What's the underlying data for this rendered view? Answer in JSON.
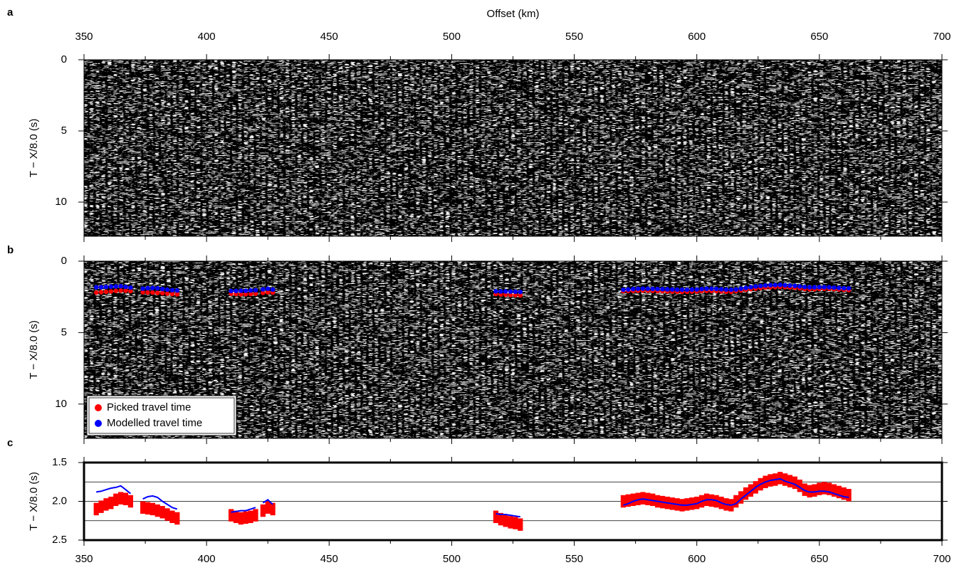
{
  "chart_data": [
    {
      "type": "seismic",
      "label": "a",
      "xlabel": "Offset (km)",
      "ylabel": "T − X/8.0 (s)",
      "yinvert": true,
      "xlim": [
        350,
        700
      ],
      "xticks": [
        350,
        400,
        450,
        500,
        550,
        600,
        650,
        700
      ],
      "xminorticks": [
        375,
        425,
        475,
        525,
        575,
        625,
        675
      ],
      "ylim": [
        0,
        12.4
      ],
      "yticks": [
        0,
        5,
        10
      ]
    },
    {
      "type": "seismic",
      "label": "b",
      "ylabel": "T − X/8.0 (s)",
      "yinvert": true,
      "legend": "lower left",
      "xlim": [
        350,
        700
      ],
      "xticks": [
        350,
        400,
        450,
        500,
        550,
        600,
        650,
        700
      ],
      "xminorticks": [
        375,
        425,
        475,
        525,
        575,
        625,
        675
      ],
      "ylim": [
        0,
        12.4
      ],
      "yticks": [
        0,
        5,
        10
      ]
    },
    {
      "type": "errorbar",
      "label": "c",
      "ylabel": "T − X/8.0 (s)",
      "yinvert": true,
      "xlim": [
        350,
        700
      ],
      "xticks": [
        350,
        400,
        450,
        500,
        550,
        600,
        650,
        700
      ],
      "xminorticks": [
        375,
        425,
        475,
        525,
        575,
        625,
        675
      ],
      "ylim": [
        1.5,
        2.5
      ],
      "yticks": [
        1.5,
        {
          "value": 2.0,
          "label": "2.0"
        },
        2.5
      ],
      "ygrid": [
        1.75,
        2.0,
        2.25
      ],
      "series": [
        {
          "name": "Picked travel time",
          "color": "#ff0000",
          "error": 0.08,
          "x": [
            355,
            357,
            359,
            361,
            363,
            365,
            367,
            369,
            null,
            374,
            376,
            378,
            380,
            382,
            384,
            386,
            388,
            null,
            410,
            412,
            414,
            416,
            418,
            420,
            null,
            423,
            425,
            427,
            null,
            518,
            520,
            522,
            524,
            526,
            528,
            null,
            570,
            572,
            574,
            576,
            578,
            580,
            582,
            584,
            586,
            588,
            590,
            592,
            594,
            596,
            598,
            600,
            602,
            604,
            606,
            608,
            610,
            612,
            614,
            616,
            618,
            620,
            622,
            624,
            626,
            628,
            630,
            632,
            634,
            636,
            638,
            640,
            642,
            644,
            646,
            648,
            650,
            652,
            654,
            656,
            658,
            660,
            662
          ],
          "values": [
            2.1,
            2.07,
            2.04,
            2.02,
            1.98,
            1.96,
            1.97,
            2.0,
            null,
            2.08,
            2.09,
            2.1,
            2.12,
            2.14,
            2.17,
            2.2,
            2.22,
            null,
            2.18,
            2.2,
            2.22,
            2.21,
            2.2,
            2.18,
            null,
            2.12,
            2.08,
            2.1,
            null,
            2.2,
            2.23,
            2.25,
            2.27,
            2.28,
            2.3,
            null,
            2.0,
            1.99,
            1.98,
            1.97,
            1.96,
            1.97,
            1.98,
            2.0,
            2.01,
            2.02,
            2.03,
            2.04,
            2.05,
            2.04,
            2.03,
            2.02,
            2.0,
            1.98,
            1.99,
            2.0,
            2.02,
            2.04,
            2.05,
            2.0,
            1.95,
            1.9,
            1.86,
            1.82,
            1.78,
            1.75,
            1.73,
            1.72,
            1.7,
            1.72,
            1.74,
            1.76,
            1.8,
            1.85,
            1.87,
            1.86,
            1.84,
            1.83,
            1.84,
            1.86,
            1.88,
            1.9,
            1.92
          ]
        },
        {
          "name": "Modelled travel time",
          "color": "#0000ff",
          "x": [
            355,
            357,
            359,
            361,
            363,
            365,
            367,
            369,
            null,
            374,
            376,
            378,
            380,
            382,
            384,
            386,
            388,
            null,
            410,
            412,
            414,
            416,
            418,
            420,
            null,
            423,
            425,
            427,
            null,
            518,
            520,
            522,
            524,
            526,
            528,
            null,
            570,
            572,
            574,
            576,
            578,
            580,
            582,
            584,
            586,
            588,
            590,
            592,
            594,
            596,
            598,
            600,
            602,
            604,
            606,
            608,
            610,
            612,
            614,
            616,
            618,
            620,
            622,
            624,
            626,
            628,
            630,
            632,
            634,
            636,
            638,
            640,
            642,
            644,
            646,
            648,
            650,
            652,
            654,
            656,
            658,
            660,
            662
          ],
          "values": [
            1.88,
            1.87,
            1.85,
            1.83,
            1.82,
            1.8,
            1.85,
            1.9,
            null,
            1.97,
            1.94,
            1.93,
            1.95,
            2.0,
            2.04,
            2.08,
            2.1,
            null,
            2.14,
            2.13,
            2.12,
            2.12,
            2.1,
            2.08,
            null,
            2.02,
            1.98,
            2.04,
            null,
            2.16,
            2.17,
            2.17,
            2.18,
            2.19,
            2.2,
            null,
            2.05,
            2.03,
            2.0,
            1.98,
            1.97,
            1.98,
            1.99,
            2.0,
            2.01,
            2.02,
            2.03,
            2.04,
            2.05,
            2.05,
            2.04,
            2.03,
            2.0,
            1.98,
            1.98,
            1.99,
            2.02,
            2.04,
            2.05,
            2.03,
            1.97,
            1.92,
            1.87,
            1.82,
            1.78,
            1.75,
            1.73,
            1.72,
            1.71,
            1.74,
            1.76,
            1.78,
            1.82,
            1.86,
            1.88,
            1.88,
            1.87,
            1.87,
            1.88,
            1.9,
            1.92,
            1.94,
            1.95
          ]
        }
      ]
    }
  ]
}
